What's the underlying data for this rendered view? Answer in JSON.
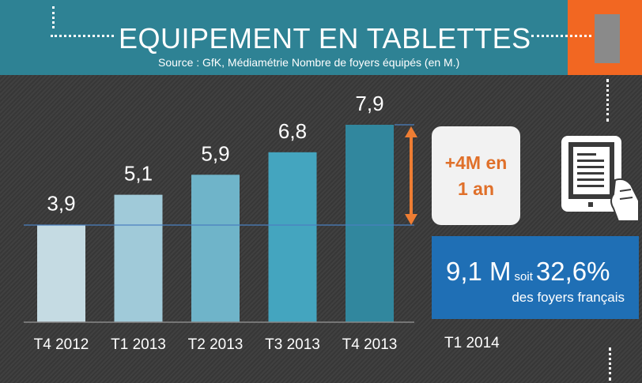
{
  "header": {
    "title": "EQUIPEMENT EN TABLETTES",
    "subtitle": "Source : GfK,  Médiamétrie Nombre de foyers équipés (en M.)"
  },
  "callout": {
    "line1": "+4M en",
    "line2": "1 an"
  },
  "stat": {
    "value": "9,1 M",
    "connector": "soit",
    "percent": "32,6%",
    "description": "des foyers français",
    "period": "T1 2014"
  },
  "colors": {
    "header_bg": "#2e8294",
    "accent_orange": "#f26722",
    "stat_box_bg": "#1f6fb5",
    "bars": [
      "#c5dbe3",
      "#a0cad9",
      "#6fb4c9",
      "#44a5bf",
      "#31879e"
    ]
  },
  "icons": [
    "tablet-hand-icon",
    "double-arrow-icon"
  ],
  "chart_data": {
    "type": "bar",
    "title": "EQUIPEMENT EN TABLETTES",
    "categories": [
      "T4 2012",
      "T1 2013",
      "T2 2013",
      "T3 2013",
      "T4 2013"
    ],
    "values": [
      3.9,
      5.1,
      5.9,
      6.8,
      7.9
    ],
    "value_labels": [
      "3,9",
      "5,1",
      "5,9",
      "6,8",
      "7,9"
    ],
    "ylim": [
      0,
      7.9
    ],
    "grid": false,
    "legend": "none"
  }
}
